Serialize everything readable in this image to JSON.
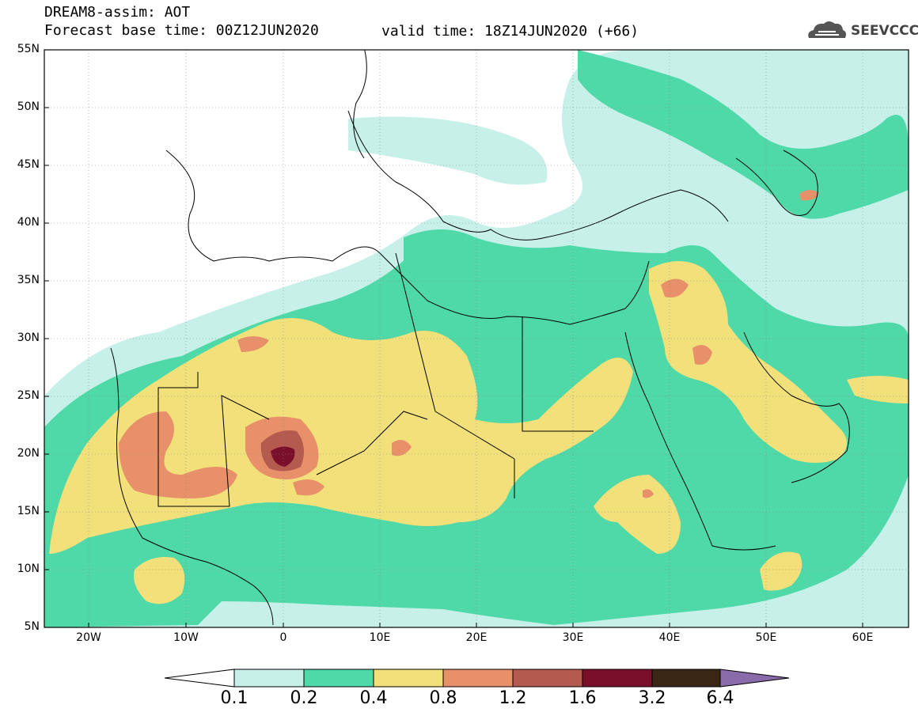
{
  "header": {
    "line1": "DREAM8-assim: AOT",
    "line2": "Forecast base time: 00Z12JUN2020",
    "valid": "valid time: 18Z14JUN2020 (+66)",
    "logo_text": "SEEVCCC"
  },
  "axes": {
    "lat_labels": [
      "55N",
      "50N",
      "45N",
      "40N",
      "35N",
      "30N",
      "25N",
      "20N",
      "15N",
      "10N",
      "5N"
    ],
    "lon_labels": [
      "20W",
      "10W",
      "0",
      "10E",
      "20E",
      "30E",
      "40E",
      "50E",
      "60E"
    ]
  },
  "colorbar": {
    "levels": [
      "0.1",
      "0.2",
      "0.4",
      "0.8",
      "1.2",
      "1.6",
      "3.2",
      "6.4"
    ],
    "colors": [
      "#ffffff",
      "#c6f0e8",
      "#4fd9a8",
      "#f2e07a",
      "#e8906a",
      "#b45a4e",
      "#7a0f2c",
      "#3a2614",
      "#8a6aa8"
    ]
  },
  "fields": {
    "c01": "#c6f0e8",
    "c02": "#4fd9a8",
    "c04": "#f2e07a",
    "c08": "#e8906a",
    "c12": "#b45a4e",
    "c16": "#7a0f2c"
  }
}
